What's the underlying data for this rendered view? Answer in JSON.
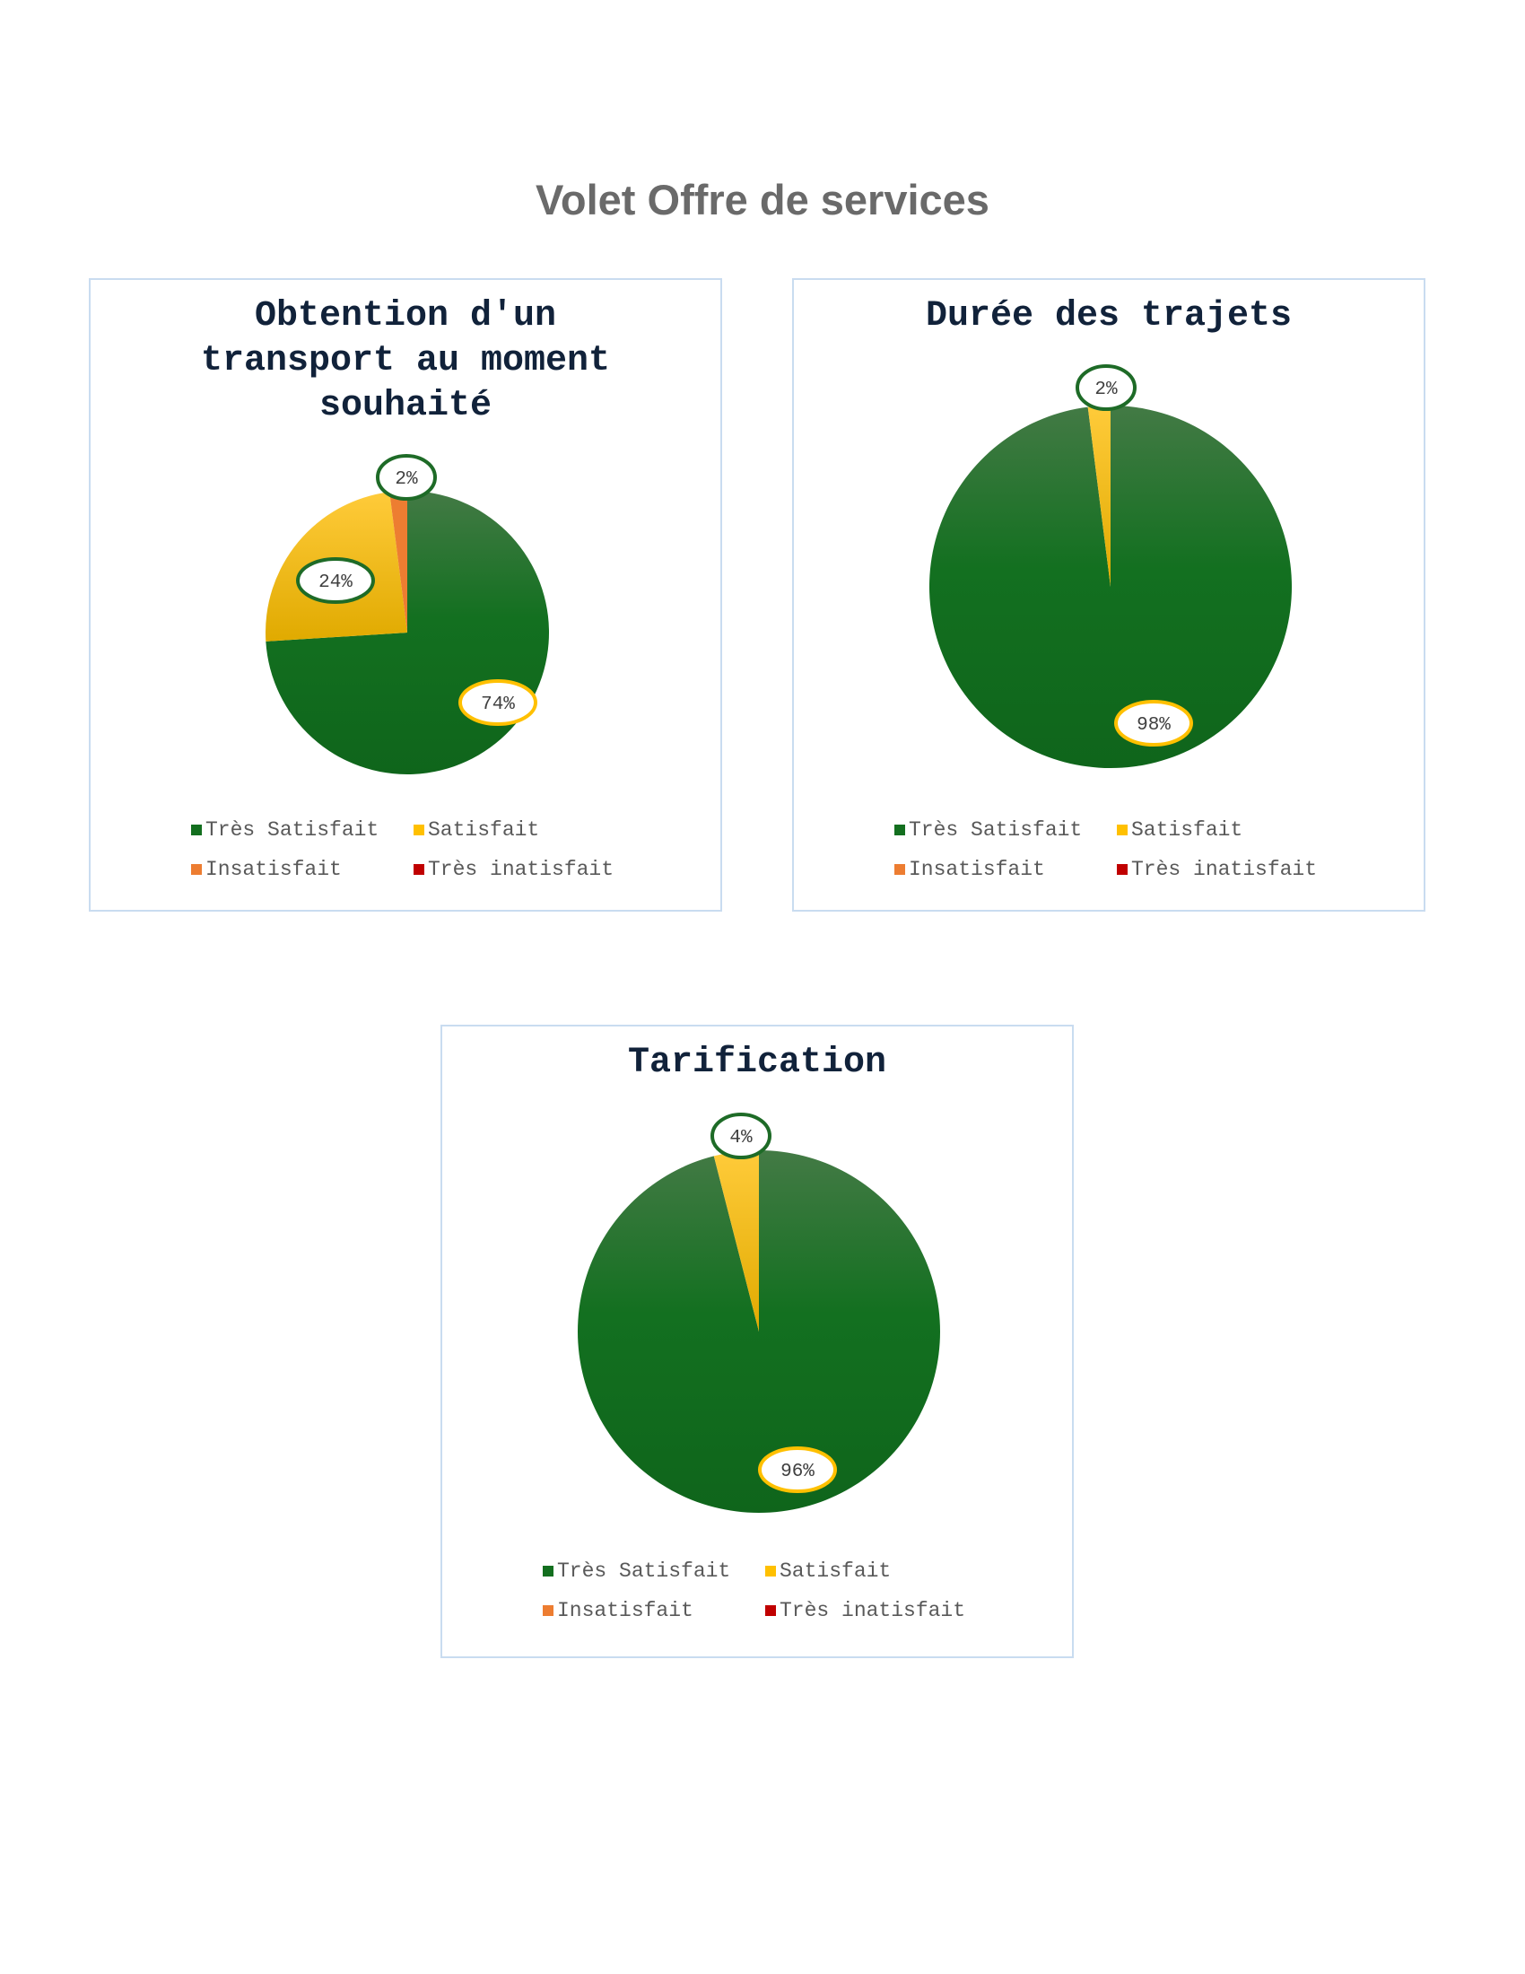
{
  "page": {
    "title": "Volet Offre de services"
  },
  "colors": {
    "tres_satisfait": "#136f1f",
    "satisfait": "#ffc000",
    "insatisfait": "#ed7d31",
    "tres_insatisfait": "#c00000"
  },
  "legend": [
    "Très Satisfait",
    "Satisfait",
    "Insatisfait",
    "Très inatisfait"
  ],
  "chart_data": [
    {
      "type": "pie",
      "title": "Obtention d'un transport au moment souhaité",
      "categories": [
        "Très Satisfait",
        "Satisfait",
        "Insatisfait",
        "Très inatisfait"
      ],
      "values": [
        74,
        24,
        2,
        0
      ],
      "labels": [
        "74%",
        "24%",
        "2%",
        ""
      ]
    },
    {
      "type": "pie",
      "title": "Durée des trajets",
      "categories": [
        "Très Satisfait",
        "Satisfait",
        "Insatisfait",
        "Très inatisfait"
      ],
      "values": [
        98,
        2,
        0,
        0
      ],
      "labels": [
        "98%",
        "2%",
        "",
        ""
      ]
    },
    {
      "type": "pie",
      "title": "Tarification",
      "categories": [
        "Très Satisfait",
        "Satisfait",
        "Insatisfait",
        "Très inatisfait"
      ],
      "values": [
        96,
        4,
        0,
        0
      ],
      "labels": [
        "96%",
        "4%",
        "",
        ""
      ]
    }
  ]
}
